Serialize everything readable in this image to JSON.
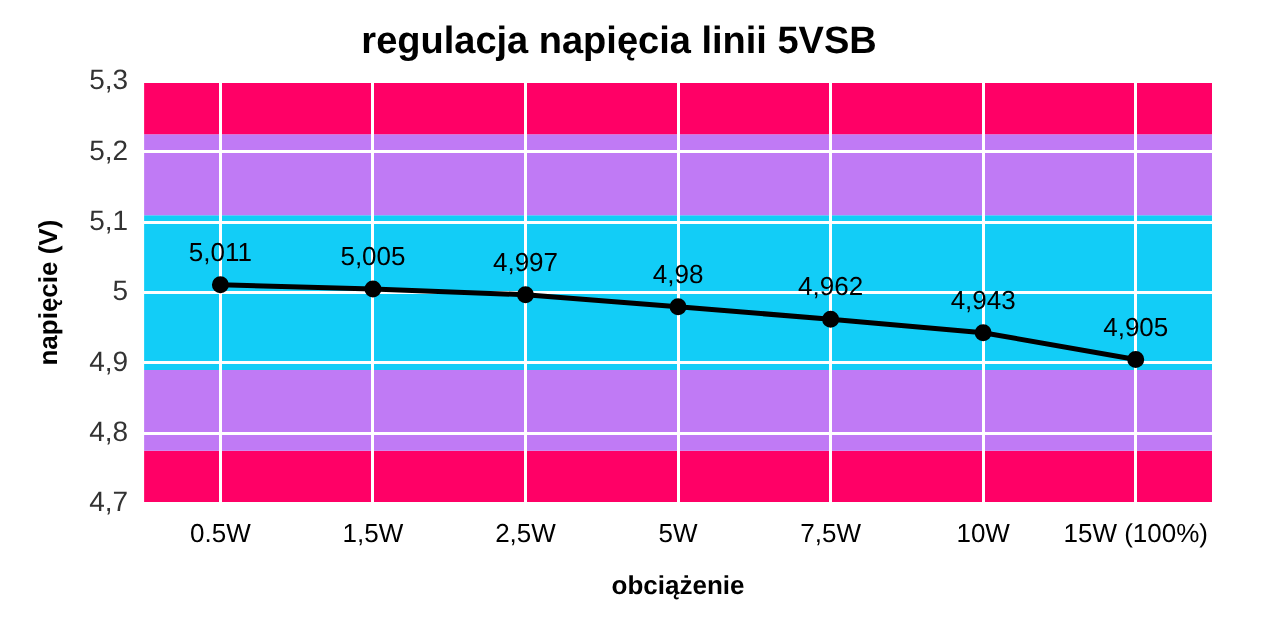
{
  "chart_data": {
    "type": "line",
    "title": "regulacja napięcia linii 5VSB",
    "xlabel": "obciążenie",
    "ylabel": "napięcie (V)",
    "categories": [
      "0.5W",
      "1,5W",
      "2,5W",
      "5W",
      "7,5W",
      "10W",
      "15W (100%)"
    ],
    "series": [
      {
        "color": "#000000",
        "values": [
          5.011,
          5.005,
          4.997,
          4.98,
          4.962,
          4.943,
          4.905
        ]
      }
    ],
    "value_labels": [
      "5,011",
      "5,005",
      "4,997",
      "4,98",
      "4,962",
      "4,943",
      "4,905"
    ],
    "ylim": [
      4.7,
      5.3
    ],
    "yticks": [
      {
        "value": 4.7,
        "label": "4,7"
      },
      {
        "value": 4.8,
        "label": "4,8"
      },
      {
        "value": 4.9,
        "label": "4,9"
      },
      5,
      {
        "value": 5.1,
        "label": "5,1"
      },
      {
        "value": 5.2,
        "label": "5,2"
      },
      {
        "value": 5.3,
        "label": "5,3"
      }
    ],
    "bands": [
      {
        "axis": "y",
        "from": 4.7,
        "to": 4.775,
        "color": "#ff0066"
      },
      {
        "axis": "y",
        "from": 4.775,
        "to": 4.89,
        "color": "#c07af5"
      },
      {
        "axis": "y",
        "from": 4.89,
        "to": 5.11,
        "color": "#12cdf7"
      },
      {
        "axis": "y",
        "from": 5.11,
        "to": 5.225,
        "color": "#c07af5"
      },
      {
        "axis": "y",
        "from": 5.225,
        "to": 5.3,
        "color": "#ff0066"
      }
    ],
    "grid": true,
    "legend": false,
    "marker": "circle",
    "line_style": "solid"
  }
}
